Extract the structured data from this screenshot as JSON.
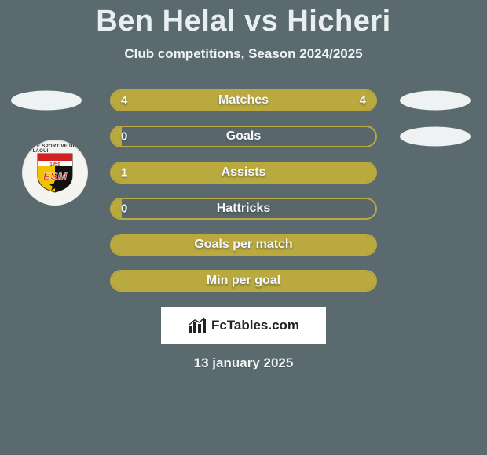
{
  "header": {
    "title": "Ben Helal vs Hicheri",
    "subtitle": "Club competitions, Season 2024/2025"
  },
  "colors": {
    "page_bg": "#5b6a6f",
    "bar_fill": "#b9a93e",
    "bar_border": "#b9a93e",
    "pill_bg": "#eef2f3",
    "text": "#f5f7f8",
    "footer_bg": "#ffffff",
    "footer_text": "#222222"
  },
  "badge": {
    "arc_text": "ETOILE SPORTIVE DE METLAOUI",
    "year_band_text": "1950",
    "letters": "ESM",
    "colors": {
      "top": "#d21f1f",
      "year_band": "#ffffff",
      "left": "#f2c200",
      "right": "#111111",
      "star": "#111111"
    }
  },
  "stats": [
    {
      "label": "Matches",
      "left_value": "4",
      "right_value": "4",
      "left_pct": 50,
      "right_pct": 50,
      "show_left_pill": true,
      "show_right_pill": true
    },
    {
      "label": "Goals",
      "left_value": "0",
      "right_value": "",
      "left_pct": 4,
      "right_pct": 0,
      "show_left_pill": false,
      "show_right_pill": true
    },
    {
      "label": "Assists",
      "left_value": "1",
      "right_value": "",
      "left_pct": 100,
      "right_pct": 0,
      "show_left_pill": false,
      "show_right_pill": false
    },
    {
      "label": "Hattricks",
      "left_value": "0",
      "right_value": "",
      "left_pct": 4,
      "right_pct": 0,
      "show_left_pill": false,
      "show_right_pill": false
    },
    {
      "label": "Goals per match",
      "left_value": "",
      "right_value": "",
      "left_pct": 100,
      "right_pct": 0,
      "show_left_pill": false,
      "show_right_pill": false
    },
    {
      "label": "Min per goal",
      "left_value": "",
      "right_value": "",
      "left_pct": 100,
      "right_pct": 0,
      "show_left_pill": false,
      "show_right_pill": false
    }
  ],
  "footer": {
    "brand": "FcTables.com",
    "date": "13 january 2025"
  }
}
